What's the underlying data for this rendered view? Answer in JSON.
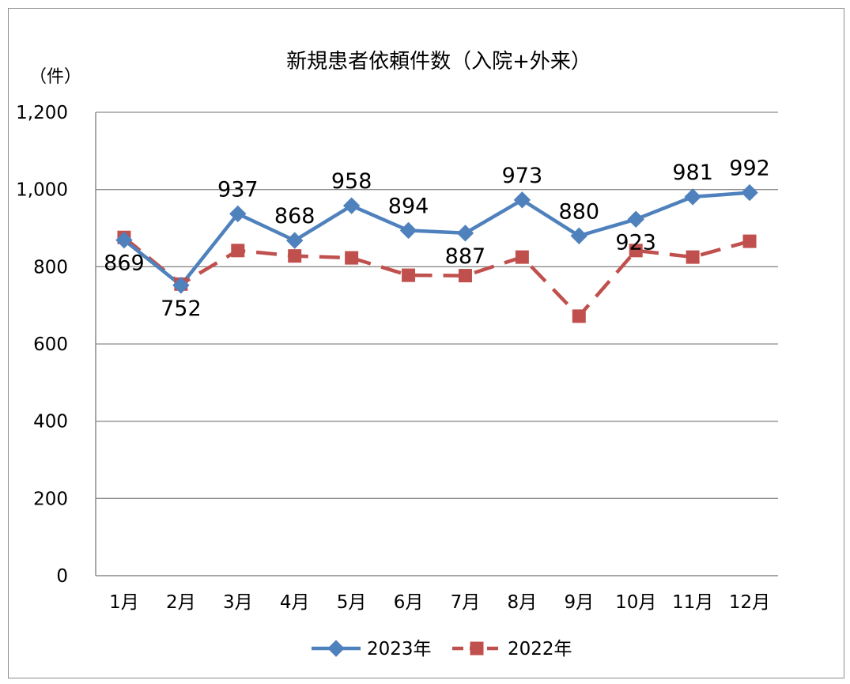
{
  "chart_data": {
    "type": "line",
    "title": "新規患者依頼件数（入院+外来）",
    "unit_label": "（件）",
    "xlabel": "",
    "ylabel": "",
    "ylim": [
      0,
      1200
    ],
    "yticks": [
      0,
      200,
      400,
      600,
      800,
      1000,
      1200
    ],
    "ytick_labels": [
      "0",
      "200",
      "400",
      "600",
      "800",
      "1,000",
      "1,200"
    ],
    "categories": [
      "1月",
      "2月",
      "3月",
      "4月",
      "5月",
      "6月",
      "7月",
      "8月",
      "9月",
      "10月",
      "11月",
      "12月"
    ],
    "grid": true,
    "legend_position": "bottom",
    "series": [
      {
        "name": "2023年",
        "color": "#4f81bd",
        "marker": "diamond",
        "line_style": "solid",
        "values": [
          869,
          752,
          937,
          868,
          958,
          894,
          887,
          973,
          880,
          923,
          981,
          992
        ],
        "data_labels": [
          "869",
          "752",
          "937",
          "868",
          "958",
          "894",
          "887",
          "973",
          "880",
          "923",
          "981",
          "992"
        ]
      },
      {
        "name": "2022年",
        "color": "#c0504d",
        "marker": "square",
        "line_style": "dashed",
        "values": [
          876,
          755,
          842,
          828,
          823,
          778,
          777,
          825,
          672,
          842,
          825,
          866
        ]
      }
    ]
  }
}
